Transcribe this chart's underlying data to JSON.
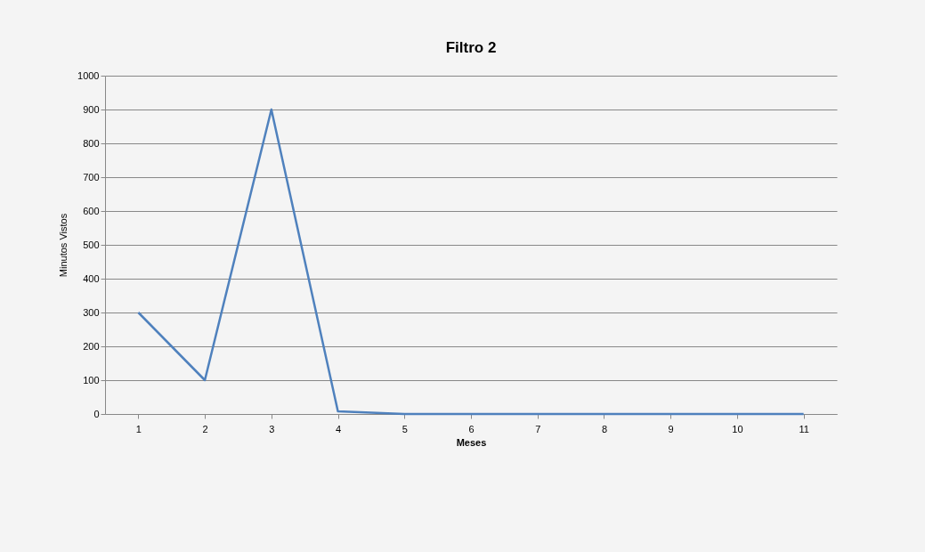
{
  "chart_data": {
    "type": "line",
    "title": "Filtro 2",
    "xlabel": "Meses",
    "ylabel": "Minutos Vistos",
    "categories": [
      "1",
      "2",
      "3",
      "4",
      "5",
      "6",
      "7",
      "8",
      "9",
      "10",
      "11"
    ],
    "series": [
      {
        "color": "#4f81bd",
        "values": [
          300,
          100,
          900,
          8,
          0,
          0,
          0,
          0,
          0,
          0,
          0
        ]
      }
    ],
    "ylim": [
      0,
      1000
    ],
    "yticks": [
      0,
      100,
      200,
      300,
      400,
      500,
      600,
      700,
      800,
      900,
      1000
    ],
    "grid": "y",
    "legend": false,
    "marker": "none",
    "line_style": "solid"
  }
}
